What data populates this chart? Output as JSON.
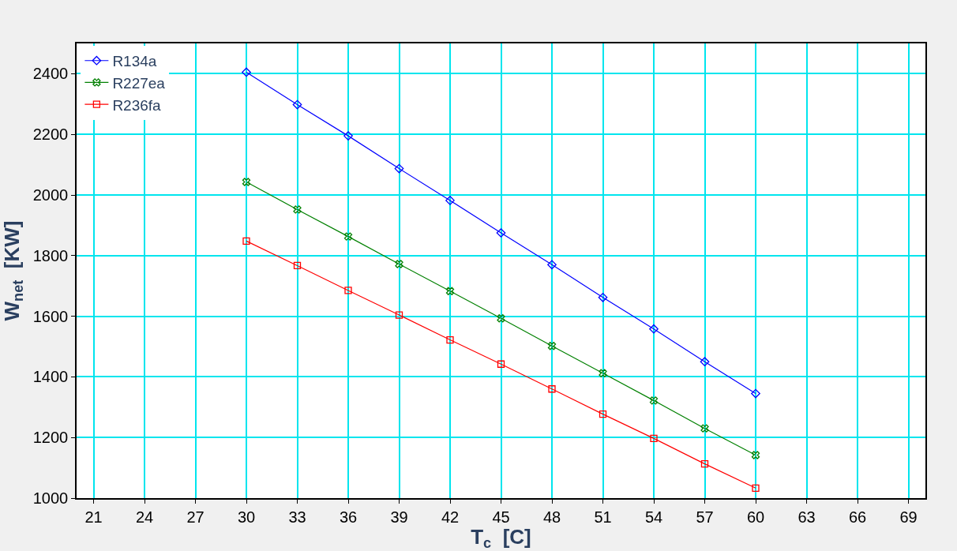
{
  "chart_data": {
    "type": "line",
    "xlabel": "T$_{c}$  [C]",
    "ylabel": "W$_{net}$  [KW]",
    "x": [
      30,
      33,
      36,
      39,
      42,
      45,
      48,
      51,
      54,
      57,
      60
    ],
    "series": [
      {
        "name": "R134a",
        "color": "#0000ff",
        "marker": "diamond",
        "values": [
          2405,
          2298,
          2195,
          2087,
          1982,
          1875,
          1770,
          1662,
          1558,
          1450,
          1345
        ]
      },
      {
        "name": "R227ea",
        "color": "#008000",
        "marker": "cross",
        "values": [
          2043,
          1952,
          1863,
          1772,
          1683,
          1593,
          1502,
          1412,
          1322,
          1230,
          1142
        ]
      },
      {
        "name": "R236fa",
        "color": "#ff0000",
        "marker": "square",
        "values": [
          1848,
          1767,
          1685,
          1604,
          1522,
          1442,
          1360,
          1277,
          1197,
          1113,
          1033
        ]
      }
    ],
    "xlim": [
      20,
      70
    ],
    "xticks": [
      21,
      24,
      27,
      30,
      33,
      36,
      39,
      42,
      45,
      48,
      51,
      54,
      57,
      60,
      63,
      66,
      69
    ],
    "ylim": [
      1000,
      2500
    ],
    "yticks": [
      1000,
      1200,
      1400,
      1600,
      1800,
      2000,
      2200,
      2400
    ],
    "grid": true,
    "legend": "top left",
    "line_style": "solid"
  }
}
